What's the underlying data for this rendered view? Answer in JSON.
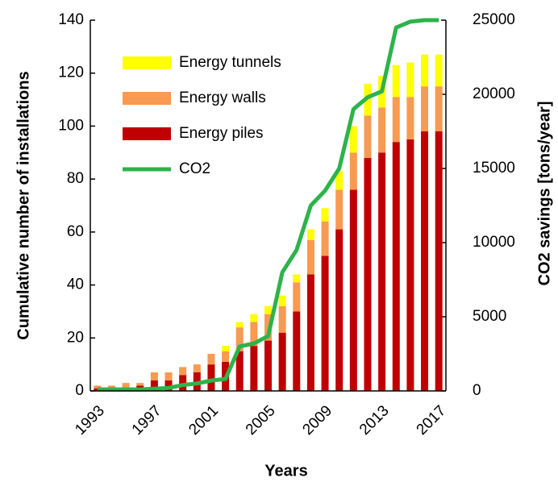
{
  "chart_data": {
    "type": "bar",
    "categories": [
      "1993",
      null,
      null,
      null,
      "1997",
      null,
      null,
      null,
      "2001",
      null,
      null,
      null,
      "2005",
      null,
      null,
      null,
      "2009",
      null,
      null,
      null,
      "2013",
      null,
      null,
      null,
      "2017"
    ],
    "series": [
      {
        "name": "Energy tunnels",
        "color": "#ffff00",
        "type": "bar",
        "values": [
          0,
          0,
          0,
          0,
          0,
          0,
          0,
          0,
          0,
          2,
          2,
          3,
          3,
          4,
          3,
          4,
          5,
          7,
          10,
          12,
          12,
          12,
          13,
          12,
          12
        ]
      },
      {
        "name": "Energy walls",
        "color": "#f79a52",
        "type": "bar",
        "values": [
          1,
          1,
          2,
          1,
          3,
          3,
          3,
          3,
          4,
          4,
          9,
          9,
          10,
          10,
          11,
          13,
          13,
          15,
          14,
          16,
          17,
          17,
          16,
          17,
          17
        ]
      },
      {
        "name": "Energy piles",
        "color": "#c00000",
        "type": "bar",
        "values": [
          1,
          1,
          1,
          2,
          4,
          4,
          6,
          7,
          10,
          11,
          15,
          17,
          19,
          22,
          30,
          44,
          51,
          61,
          76,
          88,
          90,
          94,
          95,
          98,
          98
        ]
      },
      {
        "name": "CO2",
        "color": "#2db34a",
        "type": "line",
        "axis": "y2",
        "values": [
          100,
          100,
          100,
          100,
          150,
          200,
          400,
          500,
          700,
          800,
          3000,
          3200,
          3700,
          8000,
          9500,
          12500,
          13500,
          15000,
          19000,
          19800,
          20200,
          24500,
          24900,
          25000,
          25000
        ]
      }
    ],
    "xlabel": "Years",
    "ylabel": "Cumulative number of installations",
    "y2label": "CO2 savings [tons/year]",
    "ylim": [
      0,
      140
    ],
    "yticks": [
      0,
      20,
      40,
      60,
      80,
      100,
      120,
      140
    ],
    "y2lim": [
      0,
      25000
    ],
    "y2ticks": [
      0,
      5000,
      10000,
      15000,
      20000,
      25000
    ],
    "legend": "upper left",
    "grid": false
  }
}
